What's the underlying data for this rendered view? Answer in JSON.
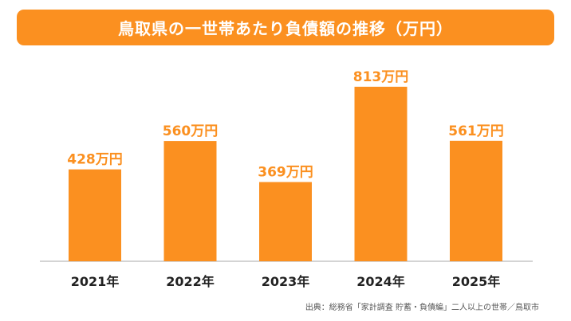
{
  "title": "鳥取県の一世帯あたり負債額の推移（万円）",
  "source_note": "出典：総務省「家計調査 貯蓄・負債編」二人以上の世帯／鳥取市",
  "colors": {
    "accent": "#fb9020",
    "axis": "#aaaaaa",
    "text": "#222222"
  },
  "chart_data": {
    "type": "bar",
    "title": "鳥取県の一世帯あたり負債額の推移（万円）",
    "xlabel": "",
    "ylabel": "",
    "unit": "万円",
    "categories": [
      "2021年",
      "2022年",
      "2023年",
      "2024年",
      "2025年"
    ],
    "values": [
      428,
      560,
      369,
      813,
      561
    ],
    "data_labels": [
      "428万円",
      "560万円",
      "369万円",
      "813万円",
      "561万円"
    ],
    "ylim": [
      0,
      900
    ],
    "grid": false,
    "legend": "none"
  }
}
